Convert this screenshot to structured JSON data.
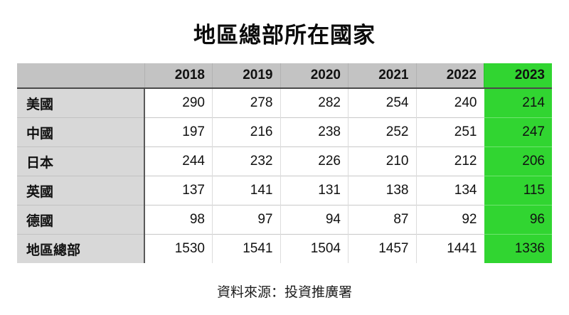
{
  "title": "地區總部所在國家",
  "source": "資料來源：投資推廣署",
  "colors": {
    "header_bg": "#c3c3c3",
    "label_bg": "#d8d8d8",
    "highlight_green": "#31d531",
    "grid_light": "#c8c8c8",
    "grid_dark": "#4a4a4a"
  },
  "chart_data": {
    "type": "table",
    "title": "地區總部所在國家",
    "columns": [
      "2018",
      "2019",
      "2020",
      "2021",
      "2022",
      "2023"
    ],
    "highlighted_column": "2023",
    "rows": [
      {
        "label": "美國",
        "values": [
          290,
          278,
          282,
          254,
          240,
          214
        ]
      },
      {
        "label": "中國",
        "values": [
          197,
          216,
          238,
          252,
          251,
          247
        ]
      },
      {
        "label": "日本",
        "values": [
          244,
          232,
          226,
          210,
          212,
          206
        ]
      },
      {
        "label": "英國",
        "values": [
          137,
          141,
          131,
          138,
          134,
          115
        ]
      },
      {
        "label": "德國",
        "values": [
          98,
          97,
          94,
          87,
          92,
          96
        ]
      },
      {
        "label": "地區總部",
        "values": [
          1530,
          1541,
          1504,
          1457,
          1441,
          1336
        ]
      }
    ],
    "source": "資料來源：投資推廣署"
  }
}
